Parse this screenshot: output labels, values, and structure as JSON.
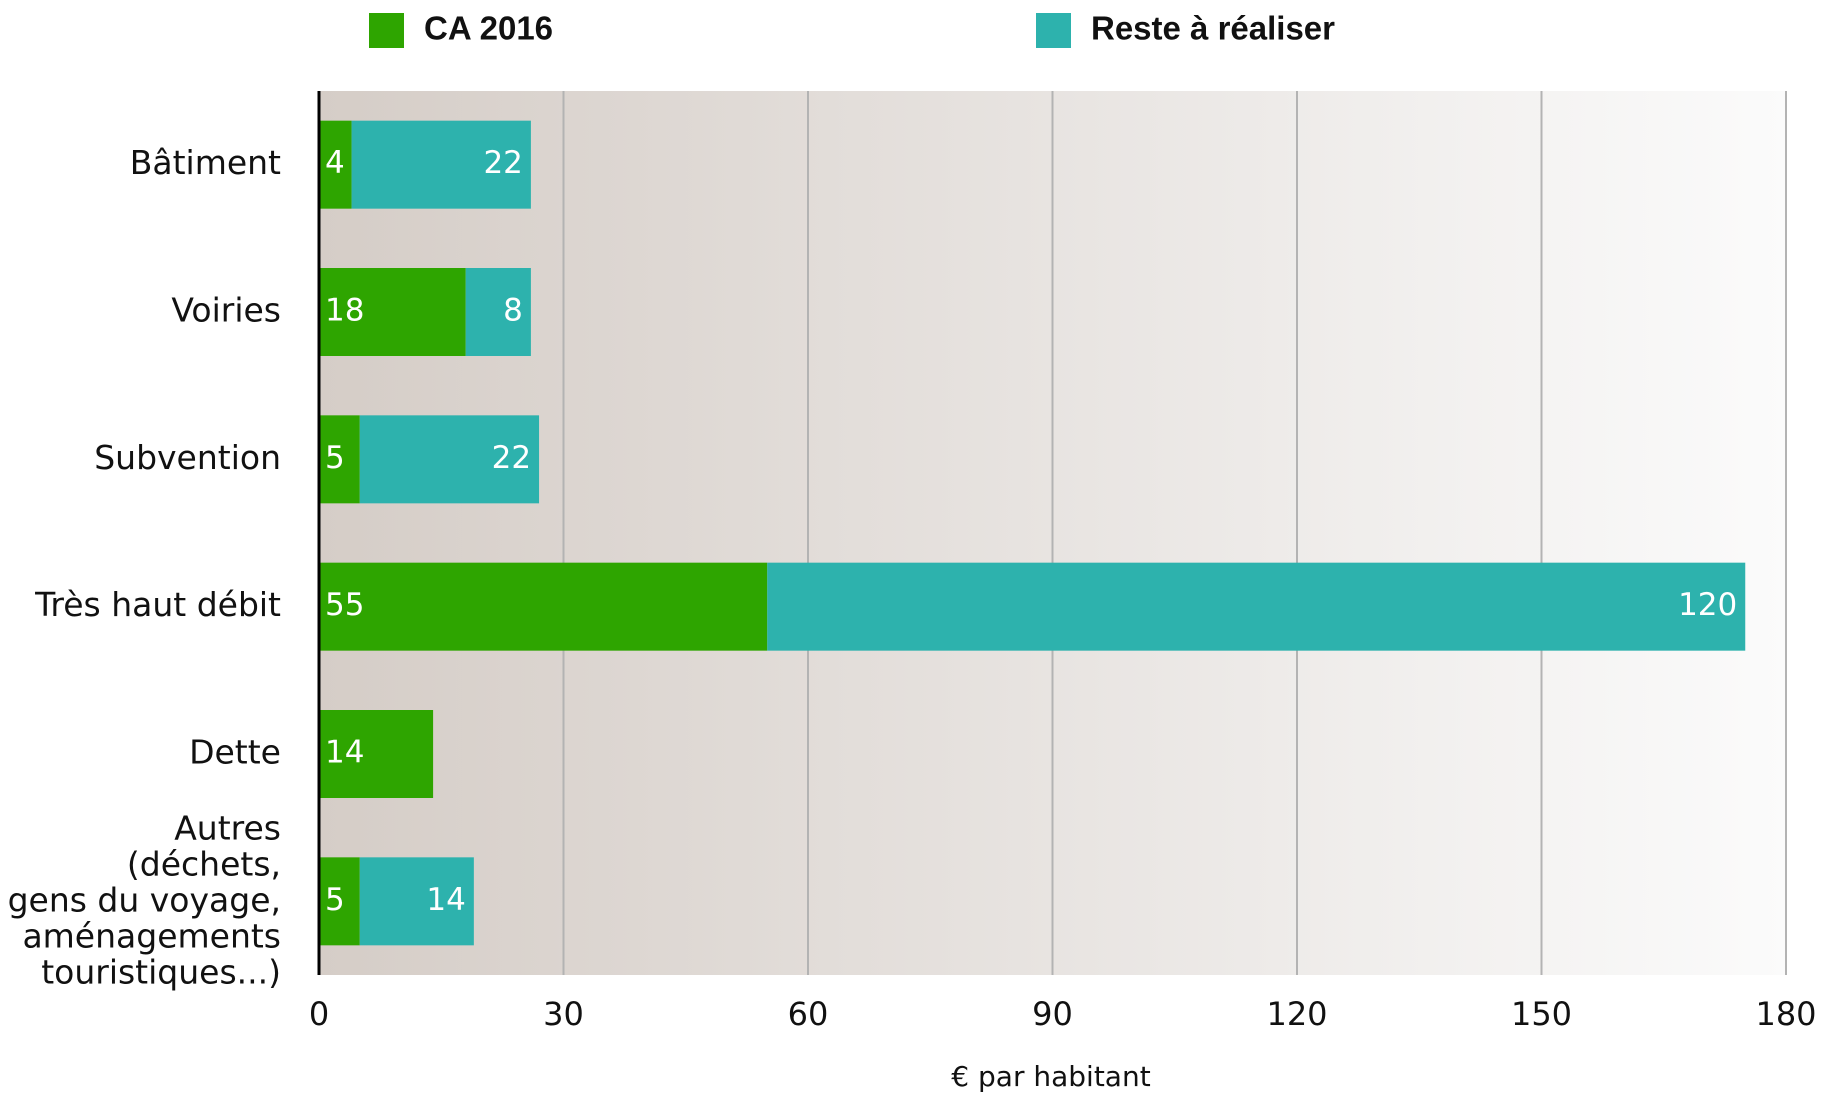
{
  "chart_data": {
    "type": "stacked_barh",
    "categories": [
      "Bâtiment",
      "Voiries",
      "Subvention",
      "Très haut débit",
      "Dette",
      "Autres\n(déchets,\ngens du voyage,\naménagements\ntouristiques...)"
    ],
    "series": [
      {
        "name": "CA 2016",
        "color": "#2ea500",
        "values": [
          4,
          18,
          5,
          55,
          14,
          5
        ]
      },
      {
        "name": "Reste à réaliser",
        "color": "#2db2ad",
        "values": [
          22,
          8,
          22,
          120,
          null,
          14
        ]
      }
    ],
    "xlim": [
      0,
      180
    ],
    "xticks": [
      0,
      30,
      60,
      90,
      120,
      150,
      180
    ],
    "xlabel": "€ par habitant",
    "grid": true
  }
}
